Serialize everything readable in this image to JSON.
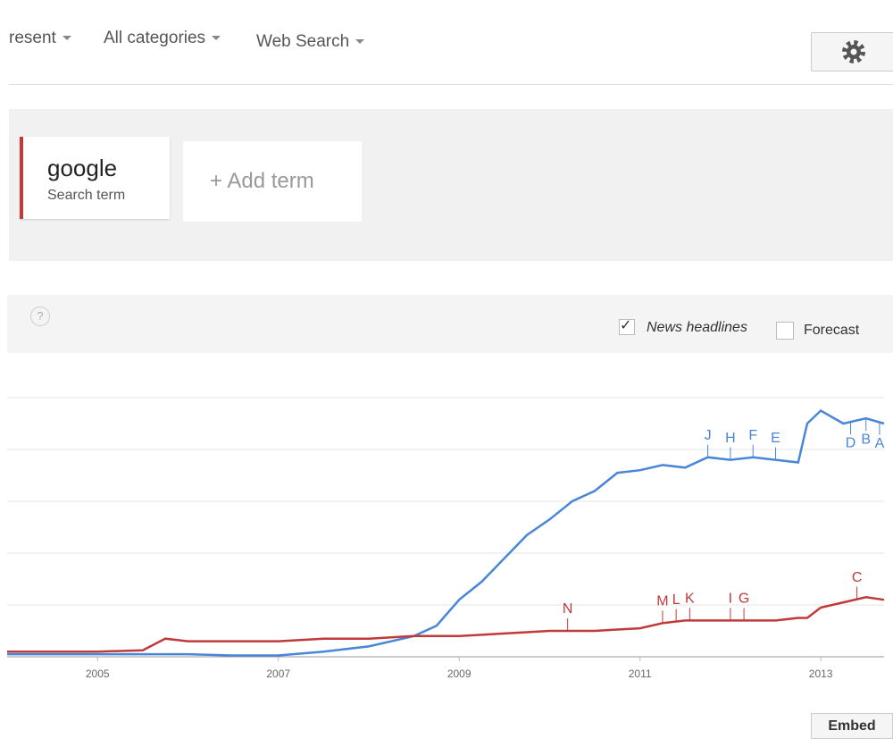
{
  "toolbar": {
    "time": "resent",
    "category": "All categories",
    "property": "Web Search"
  },
  "term": {
    "name": "google",
    "kind": "Search term"
  },
  "add_term": "+ Add term",
  "options": {
    "news": "News headlines",
    "forecast": "Forecast"
  },
  "embed": "Embed",
  "chart_data": {
    "type": "line",
    "x": [
      2004.0,
      2004.5,
      2005,
      2005.5,
      2005.75,
      2006,
      2006.5,
      2007,
      2007.5,
      2008,
      2008.5,
      2008.75,
      2009,
      2009.25,
      2009.5,
      2009.75,
      2010,
      2010.25,
      2010.5,
      2010.75,
      2011,
      2011.25,
      2011.5,
      2011.75,
      2012,
      2012.25,
      2012.5,
      2012.75,
      2012.85,
      2013,
      2013.25,
      2013.5,
      2013.7
    ],
    "series": [
      {
        "color": "#4a86d8",
        "values": [
          1,
          1,
          1,
          1,
          1,
          1,
          0.5,
          0.5,
          2,
          4,
          8,
          12,
          22,
          29,
          38,
          47,
          53,
          60,
          64,
          71,
          72,
          74,
          73,
          77,
          76,
          77,
          76,
          75,
          90,
          95,
          90,
          92,
          90
        ],
        "annotations": [
          {
            "label": "J",
            "x": 2011.75
          },
          {
            "label": "H",
            "x": 2012.0
          },
          {
            "label": "F",
            "x": 2012.25
          },
          {
            "label": "E",
            "x": 2012.5
          },
          {
            "label": "D",
            "x": 2013.33
          },
          {
            "label": "B",
            "x": 2013.5
          },
          {
            "label": "A",
            "x": 2013.65
          }
        ]
      },
      {
        "color": "#c0393b",
        "values": [
          2,
          2,
          2,
          2.5,
          7,
          6,
          6,
          6,
          7,
          7,
          8,
          8,
          8,
          8.5,
          9,
          9.5,
          10,
          10,
          10,
          10.5,
          11,
          13,
          14,
          14,
          14,
          14,
          14,
          15,
          15,
          19,
          21,
          23,
          22
        ],
        "annotations": [
          {
            "label": "N",
            "x": 2010.2
          },
          {
            "label": "M",
            "x": 2011.25
          },
          {
            "label": "L",
            "x": 2011.4
          },
          {
            "label": "K",
            "x": 2011.55
          },
          {
            "label": "I",
            "x": 2012.0
          },
          {
            "label": "G",
            "x": 2012.15
          },
          {
            "label": "C",
            "x": 2013.4
          }
        ]
      }
    ],
    "xlim": [
      2004.0,
      2013.7
    ],
    "xticks": [
      2005,
      2007,
      2009,
      2011,
      2013
    ],
    "ylim": [
      0,
      100
    ],
    "yticks": [
      0,
      20,
      40,
      60,
      80,
      100
    ],
    "grid": true
  }
}
